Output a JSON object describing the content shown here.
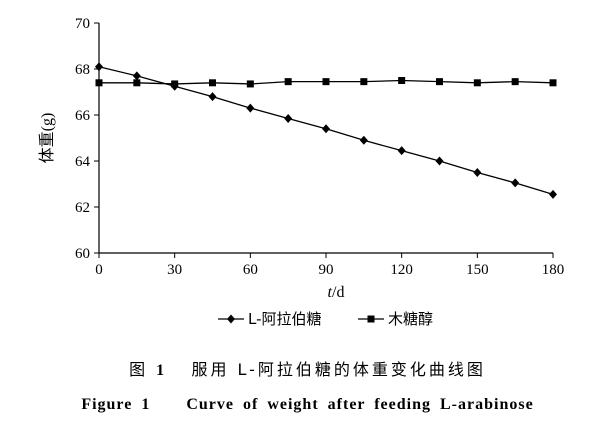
{
  "chart_data": {
    "type": "line",
    "xlabel_italic": "t",
    "xlabel_unit": "/d",
    "ylabel": "体重(g)",
    "xlim": [
      0,
      180
    ],
    "ylim": [
      60,
      70
    ],
    "xticks": [
      0,
      30,
      60,
      90,
      120,
      150,
      180
    ],
    "yticks": [
      60,
      62,
      64,
      66,
      68,
      70
    ],
    "grid": false,
    "legend_placement": "bottom",
    "x": [
      0,
      15,
      30,
      45,
      60,
      75,
      90,
      105,
      120,
      135,
      150,
      165,
      180
    ],
    "series": [
      {
        "name": "L-阿拉伯糖",
        "marker": "diamond",
        "values": [
          68.1,
          67.7,
          67.25,
          66.8,
          66.3,
          65.85,
          65.4,
          64.9,
          64.45,
          64.0,
          63.5,
          63.05,
          62.55
        ]
      },
      {
        "name": "木糖醇",
        "marker": "square",
        "values": [
          67.4,
          67.4,
          67.35,
          67.4,
          67.35,
          67.45,
          67.45,
          67.45,
          67.5,
          67.45,
          67.4,
          67.45,
          67.4
        ]
      }
    ]
  },
  "caption": {
    "cn_prefix": "图",
    "cn_number": "1",
    "cn_text": "服用 L-阿拉伯糖的体重变化曲线图",
    "en_text": "Figure 1    Curve of weight after feeding L-arabinose"
  }
}
